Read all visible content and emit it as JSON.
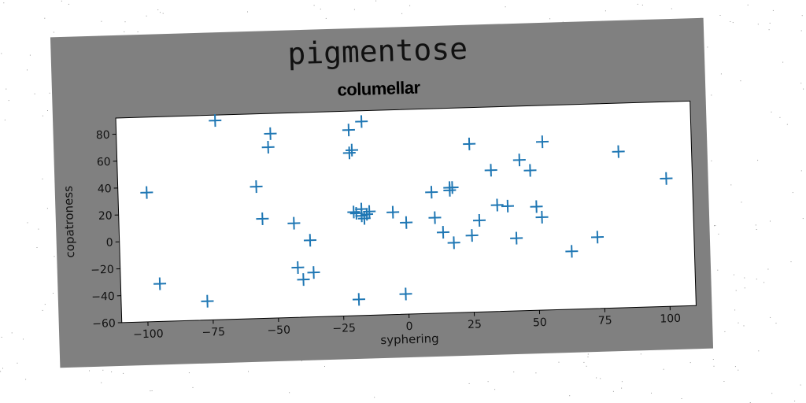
{
  "figure": {
    "title": "pigmentose",
    "background": "#808080"
  },
  "chart_data": {
    "type": "scatter",
    "title": "columellar",
    "xlabel": "syphering",
    "ylabel": "copatroness",
    "xlim": [
      -110,
      110
    ],
    "ylim": [
      -60,
      92
    ],
    "xticks": [
      -100,
      -75,
      -50,
      -25,
      0,
      25,
      50,
      75,
      100
    ],
    "yticks": [
      -60,
      -40,
      -20,
      0,
      20,
      40,
      60,
      80
    ],
    "xtick_labels": [
      "−100",
      "−75",
      "−50",
      "−25",
      "0",
      "25",
      "50",
      "75",
      "100"
    ],
    "ytick_labels": [
      "−60",
      "−40",
      "−20",
      "0",
      "20",
      "40",
      "60",
      "80"
    ],
    "grid": false,
    "marker": "+",
    "color": "#1f77b4",
    "series": [
      {
        "x": [
          -99,
          -95,
          -77,
          -72,
          -57,
          -55,
          -52,
          -51,
          -43,
          -42,
          -40,
          -37,
          -36,
          -21,
          -21,
          -20,
          -20,
          -19,
          -19,
          -17,
          -17,
          -16,
          -16,
          -15,
          -14,
          -5,
          -1,
          0,
          10,
          11,
          14,
          17,
          17,
          18,
          18,
          25,
          25,
          28,
          33,
          35,
          39,
          42,
          44,
          48,
          50,
          52,
          53,
          63,
          73,
          82,
          100
        ],
        "y": [
          36,
          -32,
          -46,
          88,
          38,
          14,
          67,
          77,
          10,
          -23,
          -32,
          -3,
          -27,
          78,
          61,
          63,
          17,
          16,
          -48,
          14,
          19,
          84,
          12,
          15,
          17,
          16,
          -45,
          8,
          30,
          11,
          0,
          31,
          33,
          -8,
          33,
          65,
          -3,
          8,
          45,
          19,
          18,
          -6,
          52,
          44,
          17,
          9,
          65,
          -17,
          -7,
          56,
          35
        ]
      }
    ]
  }
}
